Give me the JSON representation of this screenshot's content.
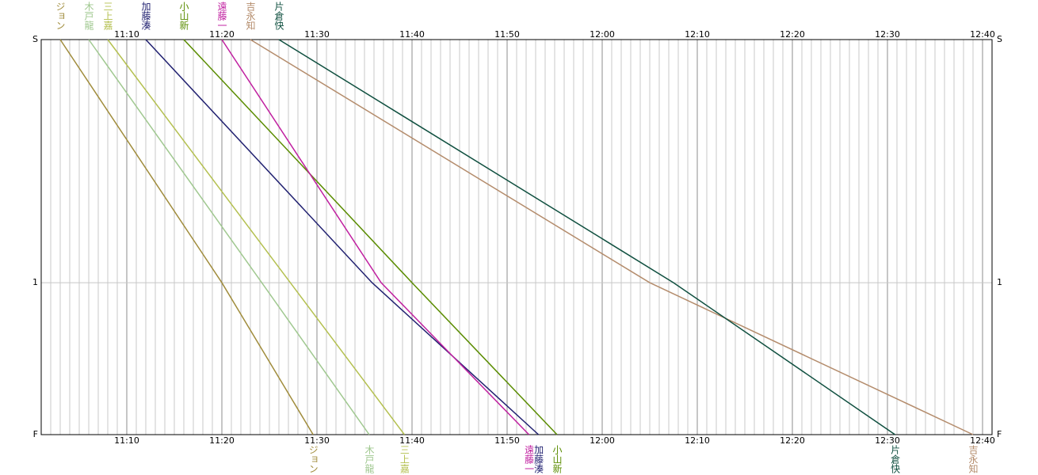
{
  "chart_data": {
    "type": "line",
    "xlim": [
      661,
      761
    ],
    "xticks": [
      {
        "value": 670,
        "label": "11:10"
      },
      {
        "value": 680,
        "label": "11:20"
      },
      {
        "value": 690,
        "label": "11:30"
      },
      {
        "value": 700,
        "label": "11:40"
      },
      {
        "value": 710,
        "label": "11:50"
      },
      {
        "value": 720,
        "label": "12:00"
      },
      {
        "value": 730,
        "label": "12:10"
      },
      {
        "value": 740,
        "label": "12:20"
      },
      {
        "value": 750,
        "label": "12:30"
      },
      {
        "value": 760,
        "label": "12:40"
      }
    ],
    "xticks_minor": [
      662,
      663,
      664,
      665,
      666,
      667,
      668,
      669,
      671,
      672,
      673,
      674,
      675,
      676,
      677,
      678,
      679,
      681,
      682,
      683,
      684,
      685,
      686,
      687,
      688,
      689,
      691,
      692,
      693,
      694,
      695,
      696,
      697,
      698,
      699,
      701,
      702,
      703,
      704,
      705,
      706,
      707,
      708,
      709,
      711,
      712,
      713,
      714,
      715,
      716,
      717,
      718,
      719,
      721,
      722,
      723,
      724,
      725,
      726,
      727,
      728,
      729,
      731,
      732,
      733,
      734,
      735,
      736,
      737,
      738,
      739,
      741,
      742,
      743,
      744,
      745,
      746,
      747,
      748,
      749,
      751,
      752,
      753,
      754,
      755,
      756,
      757,
      758,
      759
    ],
    "ylim": [
      0,
      1.625
    ],
    "yticks": [
      {
        "value": 0,
        "label": "S"
      },
      1,
      {
        "value": 1.625,
        "label": "F"
      }
    ],
    "grid": true,
    "series": [
      {
        "name": "ジョン",
        "color": "#a08c3c",
        "values": [
          663,
          680,
          689.6
        ]
      },
      {
        "name": "木戸龍",
        "color": "#a0c890",
        "values": [
          666,
          684.2,
          695.5
        ]
      },
      {
        "name": "三上嘉",
        "color": "#b4c050",
        "values": [
          668,
          687.2,
          699.2
        ]
      },
      {
        "name": "加藤湊",
        "color": "#202070",
        "values": [
          672,
          695.8,
          713.3
        ]
      },
      {
        "name": "小山新",
        "color": "#5a8c00",
        "values": [
          676,
          700,
          715.25
        ]
      },
      {
        "name": "遠藤一",
        "color": "#c020a0",
        "values": [
          680,
          696.75,
          712.3
        ]
      },
      {
        "name": "吉永知",
        "color": "#b48c6c",
        "values": [
          683,
          725,
          759
        ]
      },
      {
        "name": "片倉快",
        "color": "#105040",
        "values": [
          686,
          727.5,
          750.8
        ]
      }
    ]
  }
}
